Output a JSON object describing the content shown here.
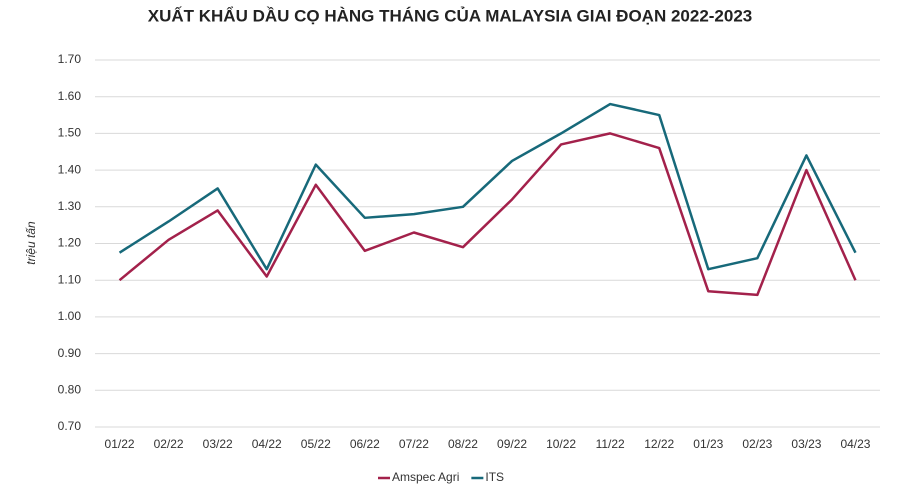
{
  "chart_data": {
    "type": "line",
    "title": "XUẤT KHẨU DẦU CỌ HÀNG THÁNG CỦA MALAYSIA GIAI ĐOẠN 2022-2023",
    "y_label": "triệu tấn",
    "categories": [
      "01/22",
      "02/22",
      "03/22",
      "04/22",
      "05/22",
      "06/22",
      "07/22",
      "08/22",
      "09/22",
      "10/22",
      "11/22",
      "12/22",
      "01/23",
      "02/23",
      "03/23",
      "04/23"
    ],
    "series": [
      {
        "name": "Amspec Agri",
        "color": "#a3214b",
        "values": [
          1.1,
          1.21,
          1.29,
          1.11,
          1.36,
          1.18,
          1.23,
          1.19,
          1.32,
          1.47,
          1.5,
          1.46,
          1.07,
          1.06,
          1.4,
          1.1
        ]
      },
      {
        "name": "ITS",
        "color": "#17697a",
        "values": [
          1.175,
          1.26,
          1.35,
          1.13,
          1.415,
          1.27,
          1.28,
          1.3,
          1.425,
          1.5,
          1.58,
          1.55,
          1.13,
          1.16,
          1.44,
          1.175
        ]
      }
    ],
    "ylim": [
      0.7,
      1.7
    ],
    "yticks": [
      {
        "value": 0.7,
        "label": "0.70"
      },
      {
        "value": 0.8,
        "label": "0.80"
      },
      {
        "value": 0.9,
        "label": "0.90"
      },
      {
        "value": 1.0,
        "label": "1.00"
      },
      {
        "value": 1.1,
        "label": "1.10"
      },
      {
        "value": 1.2,
        "label": "1.20"
      },
      {
        "value": 1.3,
        "label": "1.30"
      },
      {
        "value": 1.4,
        "label": "1.40"
      },
      {
        "value": 1.5,
        "label": "1.50"
      },
      {
        "value": 1.6,
        "label": "1.60"
      },
      {
        "value": 1.7,
        "label": "1.70"
      }
    ],
    "grid": true,
    "legend": "bottom"
  }
}
